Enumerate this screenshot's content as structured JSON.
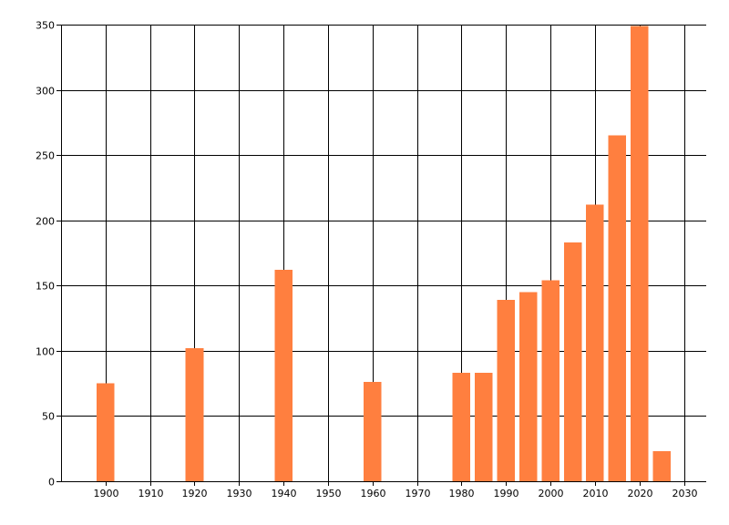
{
  "chart_data": {
    "type": "bar",
    "x": [
      1900,
      1920,
      1940,
      1960,
      1980,
      1985,
      1990,
      1995,
      2000,
      2005,
      2010,
      2015,
      2020,
      2025
    ],
    "values": [
      75,
      102,
      162,
      76,
      83,
      83,
      139,
      145,
      154,
      183,
      212,
      265,
      349,
      23
    ],
    "title": "",
    "xlabel": "",
    "ylabel": "",
    "xlim": [
      1890,
      2035
    ],
    "ylim": [
      0,
      350
    ],
    "xticks": [
      1900,
      1910,
      1920,
      1930,
      1940,
      1950,
      1960,
      1970,
      1980,
      1990,
      2000,
      2010,
      2020,
      2030
    ],
    "yticks": [
      0,
      50,
      100,
      150,
      200,
      250,
      300,
      350
    ],
    "grid": true,
    "bar_color": "#ff7f3f"
  }
}
